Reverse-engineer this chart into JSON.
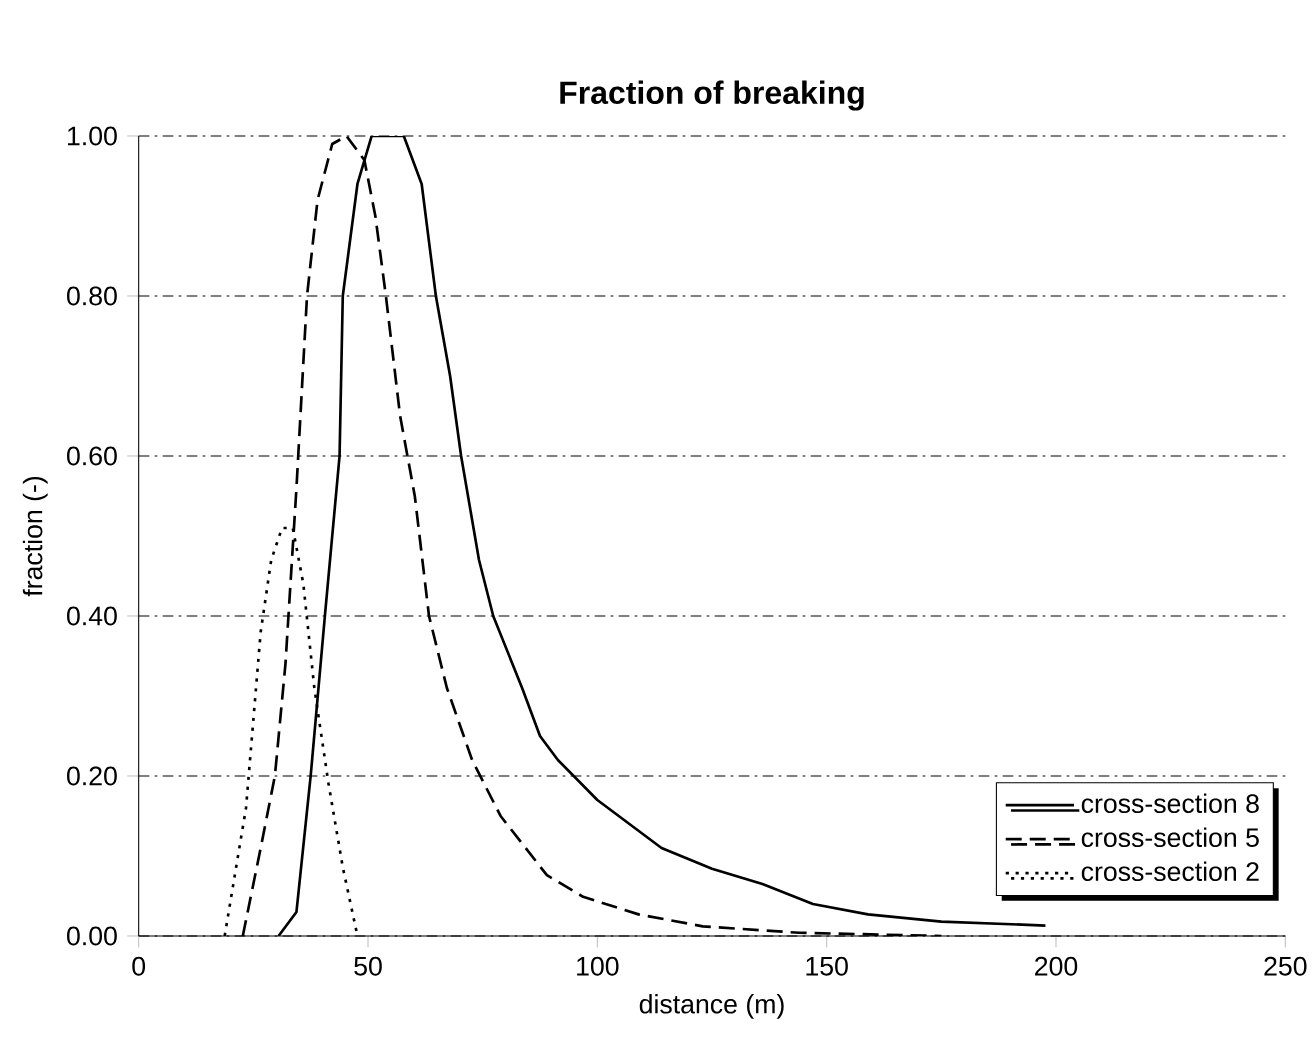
{
  "chart_data": {
    "type": "line",
    "title": "Fraction of breaking",
    "xlabel": "distance (m)",
    "ylabel": "fraction (-)",
    "xlim": [
      0,
      250
    ],
    "ylim": [
      0,
      1
    ],
    "xticks": [
      0,
      50,
      100,
      150,
      200,
      250
    ],
    "yticks": [
      {
        "value": 0,
        "label": "0.00"
      },
      {
        "value": 0.2,
        "label": "0.20"
      },
      {
        "value": 0.4,
        "label": "0.40"
      },
      {
        "value": 0.6,
        "label": "0.60"
      },
      {
        "value": 0.8,
        "label": "0.80"
      },
      {
        "value": 1,
        "label": "1.00"
      }
    ],
    "grid": "y",
    "legend": "bottom right",
    "marker": "none",
    "series": [
      {
        "name": "cross-section 8",
        "color": "#000000",
        "line_style": "solid",
        "x": [
          30.5,
          34.4,
          37.5,
          40.6,
          43.8,
          44.5,
          47.7,
          50.8,
          57.8,
          61.7,
          64.8,
          67.9,
          70.3,
          74.2,
          77.3,
          83.6,
          87.5,
          91.4,
          100,
          114,
          125,
          136,
          147,
          159,
          175,
          197.7
        ],
        "values": [
          0,
          0.03,
          0.2,
          0.4,
          0.6,
          0.8,
          0.94,
          1.0,
          1.0,
          0.94,
          0.8,
          0.7,
          0.6,
          0.47,
          0.4,
          0.31,
          0.25,
          0.22,
          0.17,
          0.11,
          0.084,
          0.065,
          0.04,
          0.027,
          0.018,
          0.013
        ]
      },
      {
        "name": "cross-section 5",
        "color": "#000000",
        "line_style": "dashed",
        "x": [
          22.7,
          26.6,
          29.7,
          32,
          34.4,
          36.7,
          39,
          42.2,
          45.3,
          49.2,
          51.6,
          53.9,
          57,
          60.2,
          63.3,
          67.2,
          72.7,
          78.9,
          89,
          96.9,
          109,
          123,
          144,
          175
        ],
        "values": [
          0,
          0.11,
          0.2,
          0.34,
          0.56,
          0.8,
          0.92,
          0.99,
          1.0,
          0.97,
          0.9,
          0.8,
          0.65,
          0.55,
          0.4,
          0.31,
          0.22,
          0.15,
          0.076,
          0.049,
          0.027,
          0.012,
          0.004,
          0
        ]
      },
      {
        "name": "cross-section 2",
        "color": "#000000",
        "line_style": "dotted",
        "x": [
          18.75,
          23.4,
          26.6,
          28.9,
          31.25,
          33.6,
          35.9,
          38.3,
          41.4,
          44.5,
          47.7
        ],
        "values": [
          0,
          0.16,
          0.38,
          0.47,
          0.51,
          0.51,
          0.44,
          0.31,
          0.19,
          0.086,
          0
        ]
      }
    ]
  }
}
